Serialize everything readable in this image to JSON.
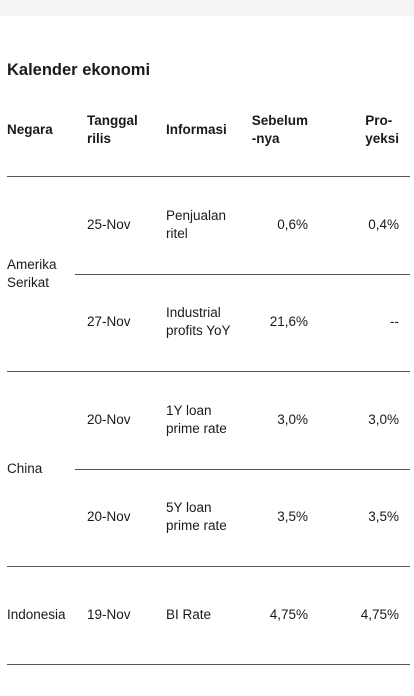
{
  "title": "Kalender ekonomi",
  "table": {
    "header": [
      "Negara",
      "Tanggal\nrilis",
      "Informasi",
      "Sebelum\n-nya",
      "Pro-\nyeksi"
    ],
    "groups": [
      {
        "country": "Amerika\nSerikat",
        "rows": [
          [
            "25-Nov",
            "Penjualan\nritel",
            "0,6%",
            "0,4%"
          ],
          [
            "27-Nov",
            "Industrial\nprofits YoY",
            "21,6%",
            "--"
          ]
        ]
      },
      {
        "country": "China",
        "rows": [
          [
            "20-Nov",
            "1Y loan\nprime rate",
            "3,0%",
            "3,0%"
          ],
          [
            "20-Nov",
            "5Y loan\nprime rate",
            "3,5%",
            "3,5%"
          ]
        ]
      },
      {
        "country": "Indonesia",
        "rows": [
          [
            "19-Nov",
            "BI Rate",
            "4,75%",
            "4,75%"
          ]
        ]
      }
    ]
  }
}
